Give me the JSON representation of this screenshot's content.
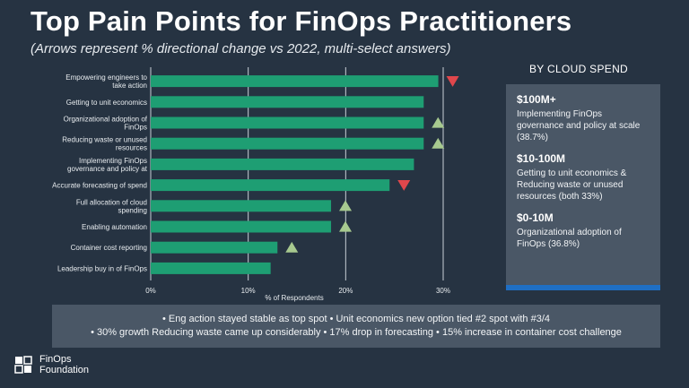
{
  "title": "Top Pain Points for FinOps Practitioners",
  "subtitle": "(Arrows represent % directional change vs 2022, multi-select answers)",
  "chart_data": {
    "type": "bar",
    "orientation": "horizontal",
    "categories": [
      [
        "Empowering engineers to",
        "take action"
      ],
      [
        "Getting to unit economics"
      ],
      [
        "Organizational adoption of",
        "FinOps"
      ],
      [
        "Reducing waste or unused",
        "resources"
      ],
      [
        "Implementing FinOps",
        "governance and policy at"
      ],
      [
        "Accurate forecasting of spend"
      ],
      [
        "Full allocation of cloud",
        "spending"
      ],
      [
        "Enabling automation"
      ],
      [
        "Container cost reporting"
      ],
      [
        "Leadership buy in of FinOps"
      ]
    ],
    "values": [
      29.5,
      28,
      28,
      28,
      27,
      24.5,
      18.5,
      18.5,
      13,
      12.3
    ],
    "arrows": [
      "down",
      "none",
      "up",
      "up",
      "none",
      "down",
      "up",
      "up",
      "up",
      "none"
    ],
    "xlabel": "% of Respondents",
    "xlim": [
      0,
      30
    ],
    "xticks": [
      "0%",
      "10%",
      "20%",
      "30%"
    ],
    "grid": true,
    "bar_color": "#1e9e73",
    "up_color": "#a7c98f",
    "down_color": "#e0474c"
  },
  "sidebar": {
    "heading": "BY CLOUD SPEND",
    "tiers": [
      {
        "heading": "$100M+",
        "text": "Implementing FinOps governance and policy at scale (38.7%)"
      },
      {
        "heading": "$10-100M",
        "text": "Getting to unit economics & Reducing waste or unused resources (both 33%)"
      },
      {
        "heading": "$0-10M",
        "text": "Organizational adoption of FinOps (36.8%)"
      }
    ],
    "accent_color": "#1f6fc4"
  },
  "notes": {
    "line1": "• Eng action stayed stable as top spot • Unit economics new option tied #2 spot with #3/4",
    "line2": "• 30% growth Reducing waste came up considerably • 17% drop in forecasting •  15% increase in container cost challenge"
  },
  "logo": {
    "line1": "FinOps",
    "line2": "Foundation",
    "icon": "cube-logo-icon"
  }
}
